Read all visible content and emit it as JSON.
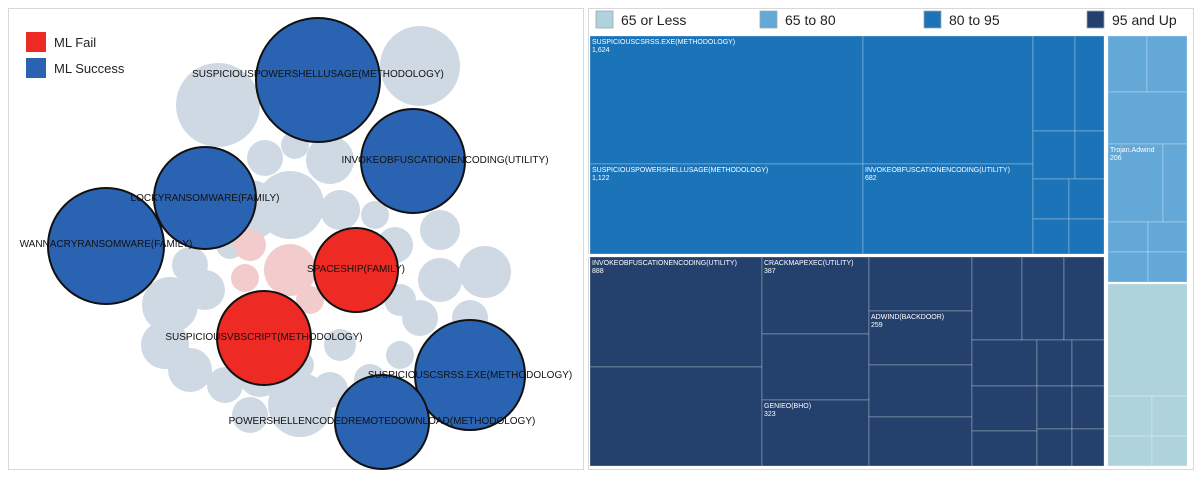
{
  "chart_data": [
    {
      "type": "bubble",
      "legend": [
        {
          "label": "ML Fail",
          "color": "#ee2a24"
        },
        {
          "label": "ML Success",
          "color": "#2b63b3"
        }
      ],
      "highlighted_bubbles": [
        {
          "label": "SUSPICIOUSPOWERSHELLUSAGE(METHODOLOGY)",
          "status": "ML Success"
        },
        {
          "label": "INVOKEOBFUSCATIONENCODING(UTILITY)",
          "status": "ML Success"
        },
        {
          "label": "LOCKYRANSOMWARE(FAMILY)",
          "status": "ML Success"
        },
        {
          "label": "WANNACRYRANSOMWARE(FAMILY)",
          "status": "ML Success"
        },
        {
          "label": "SPACESHIP(FAMILY)",
          "status": "ML Fail"
        },
        {
          "label": "SUSPICIOUSVBSCRIPT(METHODOLOGY)",
          "status": "ML Fail"
        },
        {
          "label": "SUSPICIOUSCSRSS.EXE(METHODOLOGY)",
          "status": "ML Success"
        },
        {
          "label": "POWERSHELLENCODEDREMOTEDOWNLOAD(METHODOLOGY)",
          "status": "ML Success"
        }
      ],
      "background_colors": {
        "neutral": "#cfd9e4",
        "fail_faded": "#f2cccc"
      }
    },
    {
      "type": "treemap",
      "legend": [
        {
          "label": "65 or Less",
          "color": "#aed3dc"
        },
        {
          "label": "65 to 80",
          "color": "#63a8d6"
        },
        {
          "label": "80 to 95",
          "color": "#1b73b8"
        },
        {
          "label": "95 and Up",
          "color": "#24406c"
        }
      ],
      "groups": [
        {
          "band": "80 to 95",
          "tiles": [
            {
              "label": "SUSPICIOUSCSRSS.EXE(METHODOLOGY)",
              "value": "1,624"
            },
            {
              "label": "SUSPICIOUSPOWERSHELLUSAGE(METHODOLOGY)",
              "value": "1,122"
            },
            {
              "label": "INVOKEOBFUSCATIONENCODING(UTILITY)",
              "value": "682"
            }
          ]
        },
        {
          "band": "95 and Up",
          "tiles": [
            {
              "label": "INVOKEOBFUSCATIONENCODING(UTILITY)",
              "value": "888"
            },
            {
              "label": "CRACKMAPEXEC(UTILITY)",
              "value": "387"
            },
            {
              "label": "ADWIND(BACKDOOR)",
              "value": "259"
            },
            {
              "label": "GENIEO(BHO)",
              "value": "323"
            }
          ]
        },
        {
          "band": "65 to 80",
          "tiles": [
            {
              "label": "Trojan.Adwind",
              "value": "206"
            }
          ]
        },
        {
          "band": "65 or Less",
          "tiles": []
        }
      ]
    }
  ]
}
